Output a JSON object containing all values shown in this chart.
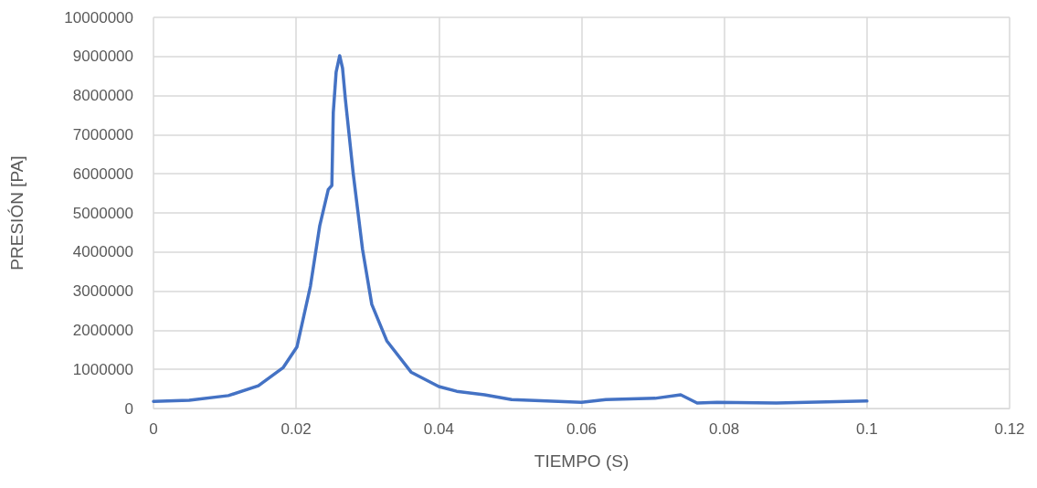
{
  "chart_data": {
    "type": "line",
    "xlabel": "TIEMPO (S)",
    "ylabel": "PRESIÓN [PA]",
    "xlim": [
      0,
      0.12
    ],
    "xticks": [
      0,
      0.02,
      0.04,
      0.06,
      0.08,
      0.1,
      0.12
    ],
    "ylim": [
      0,
      10000000
    ],
    "yticks": [
      0,
      1000000,
      2000000,
      3000000,
      4000000,
      5000000,
      6000000,
      7000000,
      8000000,
      9000000,
      10000000
    ],
    "grid": true,
    "marker": "none",
    "line_style": "solid",
    "series": [
      {
        "color": "#4472c4",
        "x": [
          0,
          0.005,
          0.0105,
          0.0147,
          0.0182,
          0.0201,
          0.022,
          0.0233,
          0.0245,
          0.025,
          0.0252,
          0.0256,
          0.0261,
          0.0265,
          0.0269,
          0.028,
          0.0293,
          0.0306,
          0.0327,
          0.0361,
          0.04,
          0.0425,
          0.0464,
          0.0502,
          0.06,
          0.0634,
          0.0703,
          0.0739,
          0.0762,
          0.079,
          0.0873,
          0.1
        ],
        "values": [
          180000,
          210000,
          330000,
          580000,
          1050000,
          1570000,
          3130000,
          4670000,
          5600000,
          5700000,
          7570000,
          8600000,
          9020000,
          8700000,
          7900000,
          6000000,
          4070000,
          2660000,
          1730000,
          930000,
          560000,
          440000,
          350000,
          230000,
          160000,
          230000,
          260000,
          350000,
          140000,
          160000,
          140000,
          190000
        ]
      }
    ]
  }
}
